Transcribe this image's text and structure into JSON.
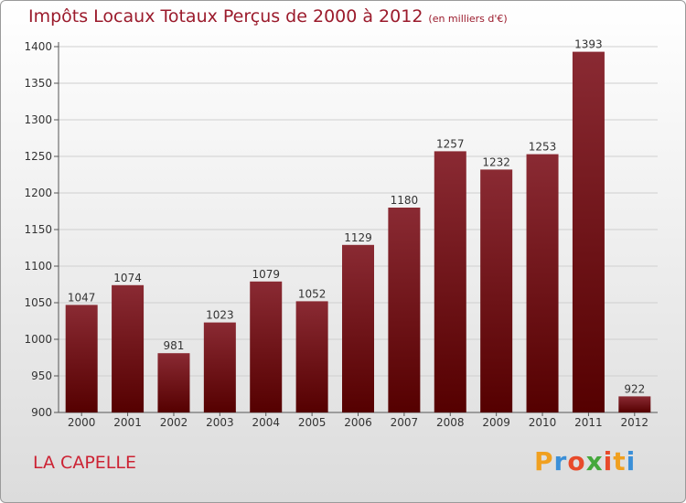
{
  "header": {
    "title": "Impôts Locaux Totaux Perçus de 2000 à 2012",
    "subtitle": "(en milliers d'€)"
  },
  "footer": {
    "city": "LA CAPELLE",
    "logo_letters": [
      "P",
      "r",
      "o",
      "x",
      "i",
      "t",
      "i"
    ],
    "logo_colors": [
      "#f0a020",
      "#3a8fd8",
      "#e84a2a",
      "#45a83c",
      "#e84a2a",
      "#f0a020",
      "#3a8fd8"
    ]
  },
  "colors": {
    "bar_top": "#8a2a33",
    "bar_bottom": "#550000",
    "grid": "#cfcfcf",
    "axis": "#555555"
  },
  "chart_data": {
    "type": "bar",
    "title": "Impôts Locaux Totaux Perçus de 2000 à 2012",
    "xlabel": "",
    "ylabel": "",
    "categories": [
      "2000",
      "2001",
      "2002",
      "2003",
      "2004",
      "2005",
      "2006",
      "2007",
      "2008",
      "2009",
      "2010",
      "2011",
      "2012"
    ],
    "values": [
      1047,
      1074,
      981,
      1023,
      1079,
      1052,
      1129,
      1180,
      1257,
      1232,
      1253,
      1393,
      922
    ],
    "ylim": [
      900,
      1400
    ],
    "yticks": [
      900,
      950,
      1000,
      1050,
      1100,
      1150,
      1200,
      1250,
      1300,
      1350,
      1400
    ],
    "grid": true
  }
}
